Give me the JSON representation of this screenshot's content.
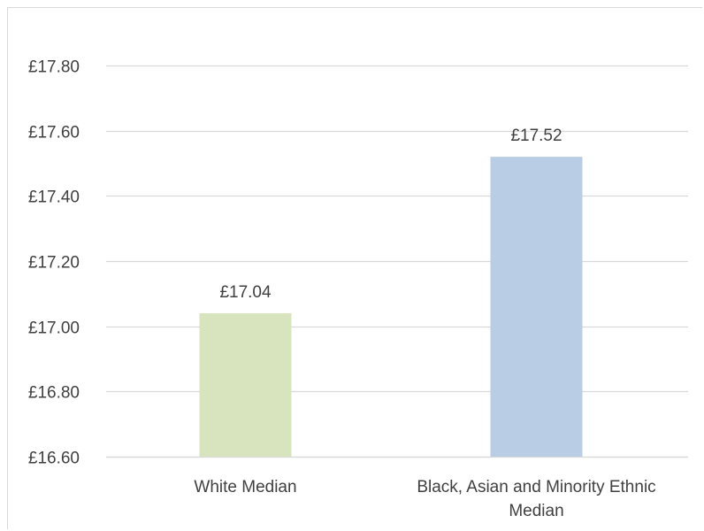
{
  "chart_data": {
    "type": "bar",
    "categories": [
      [
        "White Median"
      ],
      [
        "Black, Asian and Minority Ethnic",
        "Median"
      ]
    ],
    "values": [
      17.04,
      17.52
    ],
    "data_labels": [
      "£17.04",
      "£17.52"
    ],
    "bar_colors": [
      "#d7e4bd",
      "#b9cde5"
    ],
    "ylim": [
      16.6,
      17.8
    ],
    "yticks": [
      16.6,
      16.8,
      17.0,
      17.2,
      17.4,
      17.6,
      17.8
    ],
    "ytick_labels": [
      "£16.60",
      "£16.80",
      "£17.00",
      "£17.20",
      "£17.40",
      "£17.60",
      "£17.80"
    ],
    "grid": true,
    "gridline_color": "#d9d9d9",
    "title": "",
    "xlabel": "",
    "ylabel": ""
  }
}
